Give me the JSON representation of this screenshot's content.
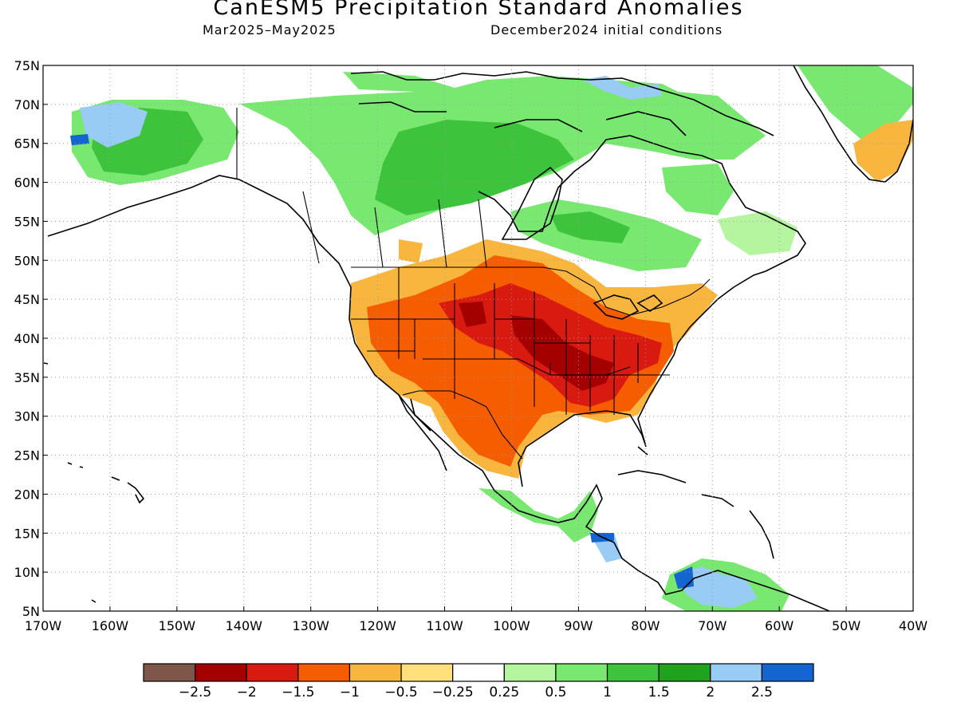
{
  "header": {
    "title": "CanESM5 Precipitation Standard Anomalies",
    "period": "Mar2025–May2025",
    "initial_conditions": "December2024 initial conditions"
  },
  "map": {
    "lon_range": [
      -170,
      -40
    ],
    "lat_range": [
      5,
      75
    ],
    "lat_labels": [
      "75N",
      "70N",
      "65N",
      "60N",
      "55N",
      "50N",
      "45N",
      "40N",
      "35N",
      "30N",
      "25N",
      "20N",
      "15N",
      "10N",
      "5N"
    ],
    "lon_labels": [
      "170W",
      "160W",
      "150W",
      "140W",
      "130W",
      "120W",
      "110W",
      "100W",
      "90W",
      "80W",
      "70W",
      "60W",
      "50W",
      "40W"
    ],
    "gridlines": "dotted"
  },
  "colorbar": {
    "colors": [
      "#7f574a",
      "#a40000",
      "#d81a10",
      "#f55d00",
      "#f8b63e",
      "#ffe07a",
      "#ffffff",
      "#b5f5a0",
      "#78e870",
      "#3ec43c",
      "#1fa31f",
      "#99ccf4",
      "#1464d2"
    ],
    "labels": [
      "−2.5",
      "−2",
      "−1.5",
      "−1",
      "−0.5",
      "−0.25",
      "0.25",
      "0.5",
      "1",
      "1.5",
      "2",
      "2.5"
    ]
  }
}
